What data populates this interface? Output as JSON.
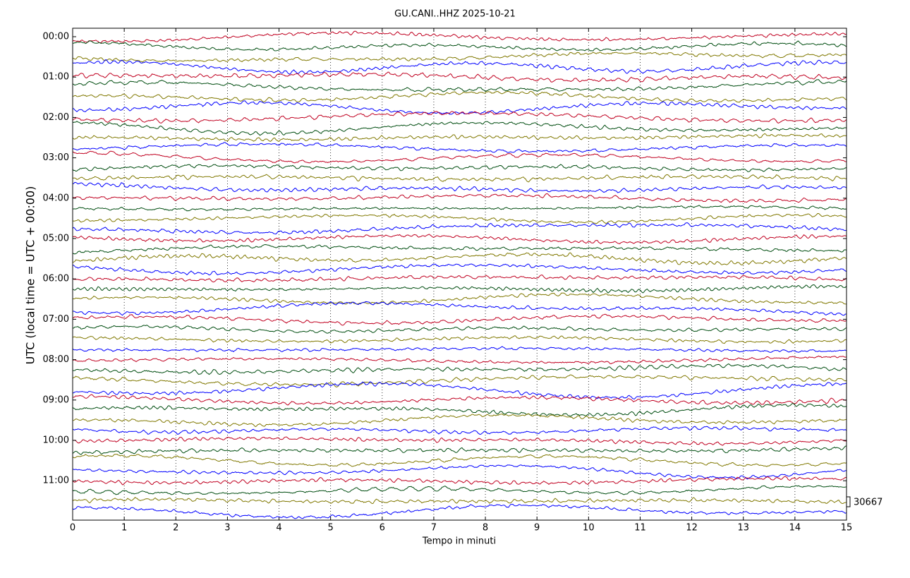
{
  "chart_data": {
    "type": "helicorder",
    "title": "GU.CANI..HHZ 2025-10-21",
    "xlabel": "Tempo in minuti",
    "ylabel": "UTC (local time = UTC + 00:00)",
    "xlim": [
      0,
      15
    ],
    "xticks": [
      0,
      1,
      2,
      3,
      4,
      5,
      6,
      7,
      8,
      9,
      10,
      11,
      12,
      13,
      14,
      15
    ],
    "row_labels": [
      "00:00",
      "01:00",
      "02:00",
      "03:00",
      "04:00",
      "05:00",
      "06:00",
      "07:00",
      "08:00",
      "09:00",
      "10:00",
      "11:00"
    ],
    "colors": [
      "#c00020",
      "#004d10",
      "#807800",
      "#0000ff"
    ],
    "grid": true,
    "scale_label": 30667
  }
}
